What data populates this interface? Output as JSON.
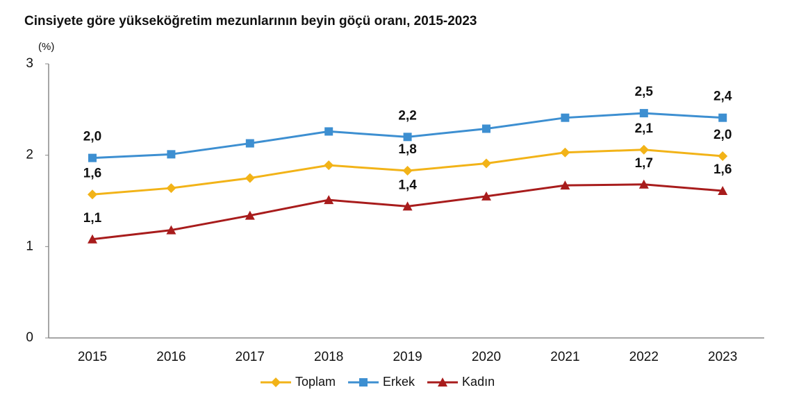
{
  "chart_data": {
    "type": "line",
    "title": "Cinsiyete göre yükseköğretim mezunlarının beyin göçü oranı, 2015-2023",
    "ylabel": "(%)",
    "categories": [
      "2015",
      "2016",
      "2017",
      "2018",
      "2019",
      "2020",
      "2021",
      "2022",
      "2023"
    ],
    "series": [
      {
        "name": "Toplam",
        "color": "#f2b318",
        "marker": "diamond",
        "values": [
          1.57,
          1.64,
          1.75,
          1.89,
          1.83,
          1.91,
          2.03,
          2.06,
          1.99
        ],
        "value_labels": [
          "1,6",
          null,
          null,
          null,
          "1,8",
          null,
          null,
          "2,1",
          "2,0"
        ]
      },
      {
        "name": "Erkek",
        "color": "#3d8fd1",
        "marker": "square",
        "values": [
          1.97,
          2.01,
          2.13,
          2.26,
          2.2,
          2.29,
          2.41,
          2.46,
          2.41
        ],
        "value_labels": [
          "2,0",
          null,
          null,
          null,
          "2,2",
          null,
          null,
          "2,5",
          "2,4"
        ]
      },
      {
        "name": "Kadın",
        "color": "#a81c1c",
        "marker": "triangle",
        "values": [
          1.08,
          1.18,
          1.34,
          1.51,
          1.44,
          1.55,
          1.67,
          1.68,
          1.61
        ],
        "value_labels": [
          "1,1",
          null,
          null,
          null,
          "1,4",
          null,
          null,
          "1,7",
          "1,6"
        ]
      }
    ],
    "ylim": [
      0,
      3
    ],
    "yticks": [
      0,
      1,
      2,
      3
    ],
    "grid": false,
    "legend": "bottom"
  }
}
